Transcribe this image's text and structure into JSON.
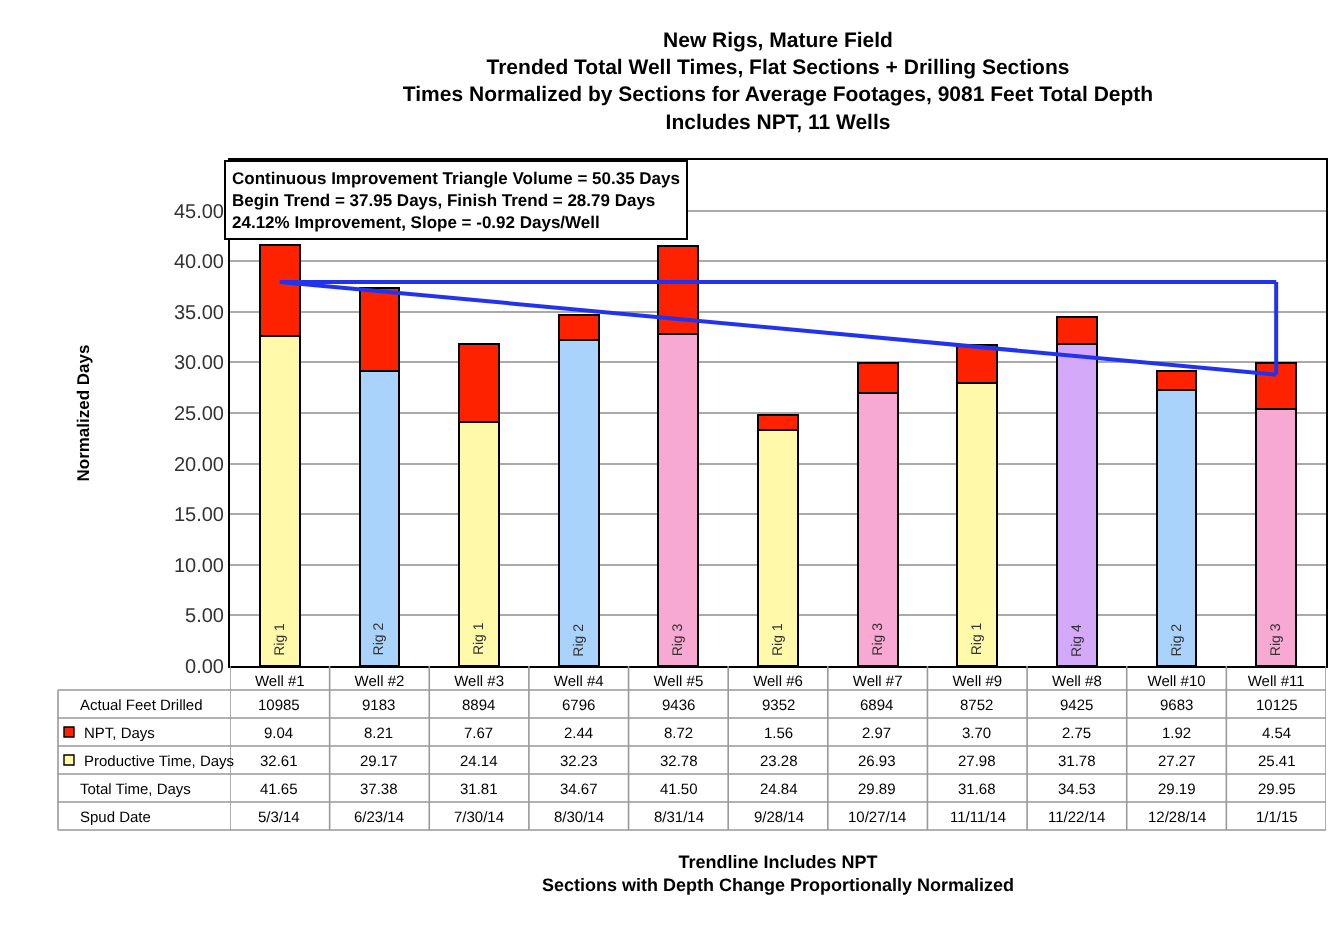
{
  "chart_data": {
    "type": "bar",
    "title": "New Rigs, Mature Field\nTrended Total Well Times, Flat Sections + Drilling Sections\nTimes Normalized by Sections for Average Footages, 9081 Feet Total Depth\nIncludes NPT, 11 Wells",
    "ylabel": "Normalized Days",
    "categories": [
      "Well #1",
      "Well #2",
      "Well #3",
      "Well #4",
      "Well #5",
      "Well #6",
      "Well #7",
      "Well #9",
      "Well #8",
      "Well #10",
      "Well #11"
    ],
    "stacked": true,
    "series": [
      {
        "name": "Productive Time, Days",
        "colors": [
          "#fff9a9",
          "#a9d3fb",
          "#fff9a9",
          "#a9d3fb",
          "#f8a9d3",
          "#fff9a9",
          "#f8a9d3",
          "#fff9a9",
          "#d5a9f9",
          "#a9d3fb",
          "#f8a9d3"
        ],
        "values": [
          32.61,
          29.17,
          24.14,
          32.23,
          32.78,
          23.28,
          26.93,
          27.98,
          31.78,
          27.27,
          25.41
        ],
        "value_labels": [
          "32.61",
          "29.17",
          "24.14",
          "32.23",
          "32.78",
          "23.28",
          "26.93",
          "27.98",
          "31.78",
          "27.27",
          "25.41"
        ]
      },
      {
        "name": "NPT, Days",
        "color": "#ff2200",
        "values": [
          9.04,
          8.21,
          7.67,
          2.44,
          8.72,
          1.56,
          2.97,
          3.7,
          2.75,
          1.92,
          4.54
        ],
        "value_labels": [
          "9.04",
          "8.21",
          "7.67",
          "2.44",
          "8.72",
          "1.56",
          "2.97",
          "3.70",
          "2.75",
          "1.92",
          "4.54"
        ]
      },
      {
        "type": "line",
        "color": "#2233ee",
        "x": [
          "Well #1",
          "Well #11"
        ],
        "values": [
          37.95,
          28.79
        ]
      },
      {
        "type": "line",
        "color": "#2233ee",
        "x": [
          "Well #1",
          "Well #11"
        ],
        "values": [
          37.95,
          37.95
        ]
      },
      {
        "type": "line",
        "color": "#2233ee",
        "x": [
          "Well #11",
          "Well #11"
        ],
        "values": [
          37.95,
          28.79
        ]
      }
    ],
    "ylim": [
      0,
      50
    ],
    "yticks": [
      {
        "value": 0,
        "label": "0.00"
      },
      {
        "value": 5,
        "label": "5.00"
      },
      {
        "value": 10,
        "label": "10.00"
      },
      {
        "value": 15,
        "label": "15.00"
      },
      {
        "value": 20,
        "label": "20.00"
      },
      {
        "value": 25,
        "label": "25.00"
      },
      {
        "value": 30,
        "label": "30.00"
      },
      {
        "value": 35,
        "label": "35.00"
      },
      {
        "value": 40,
        "label": "40.00"
      },
      {
        "value": 45,
        "label": "45.00"
      }
    ],
    "grid": "y",
    "legend": "bottom left",
    "annotations": [
      "Continuous Improvement Triangle Volume = 50.35 Days\nBegin Trend = 37.95 Days, Finish Trend = 28.79 Days\n24.12% Improvement, Slope = -0.92 Days/Well",
      "Trendline Includes NPT\nSections with Depth Change Proportionally Normalized",
      {
        "text": "Rig 1",
        "x": "Well #1",
        "y": 0
      },
      {
        "text": "Rig 2",
        "x": "Well #2",
        "y": 0
      },
      {
        "text": "Rig 1",
        "x": "Well #3",
        "y": 0
      },
      {
        "text": "Rig 2",
        "x": "Well #4",
        "y": 0
      },
      {
        "text": "Rig 3",
        "x": "Well #5",
        "y": 0
      },
      {
        "text": "Rig 1",
        "x": "Well #6",
        "y": 0
      },
      {
        "text": "Rig 3",
        "x": "Well #7",
        "y": 0
      },
      {
        "text": "Rig 1",
        "x": "Well #9",
        "y": 0
      },
      {
        "text": "Rig 4",
        "x": "Well #8",
        "y": 0
      },
      {
        "text": "Rig 2",
        "x": "Well #10",
        "y": 0
      },
      {
        "text": "Rig 3",
        "x": "Well #11",
        "y": 0
      },
      "Actual Feet Drilled",
      "10985",
      "9183",
      "8894",
      "6796",
      "9436",
      "9352",
      "6894",
      "8752",
      "9425",
      "9683",
      "10125",
      "Total Time, Days",
      "41.65",
      "37.38",
      "31.81",
      "34.67",
      "41.50",
      "24.84",
      "29.89",
      "31.68",
      "34.53",
      "29.19",
      "29.95",
      "Spud Date",
      "5/3/14",
      "6/23/14",
      "7/30/14",
      "8/30/14",
      "8/31/14",
      "9/28/14",
      "10/27/14",
      "11/11/14",
      "11/22/14",
      "12/28/14",
      "1/1/15"
    ]
  }
}
